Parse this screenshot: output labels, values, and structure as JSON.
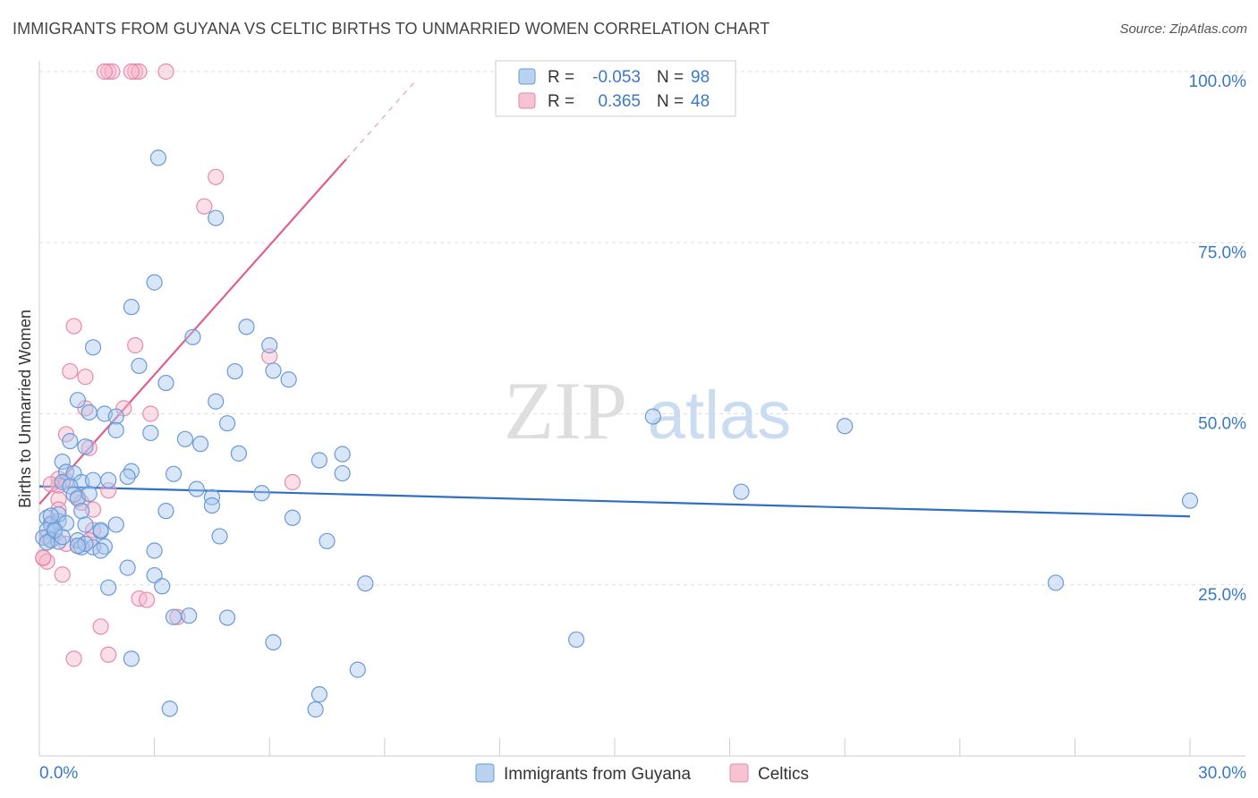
{
  "title": "IMMIGRANTS FROM GUYANA VS CELTIC BIRTHS TO UNMARRIED WOMEN CORRELATION CHART",
  "source": "Source: ZipAtlas.com",
  "watermark": {
    "zip": "ZIP",
    "atlas": "atlas"
  },
  "colors": {
    "blue": "#3a78c8",
    "blue_fill": "#a8c8ee",
    "pink": "#e0608a",
    "pink_fill": "#f6b8cc",
    "grid": "#dddddd",
    "axis_text": "#3a78c8"
  },
  "legend": {
    "rows": [
      {
        "r_label": "R =",
        "r_value": "-0.053",
        "n_label": "N =",
        "n_value": "98"
      },
      {
        "r_label": "R =",
        "r_value": "0.365",
        "n_label": "N =",
        "n_value": "48"
      }
    ]
  },
  "bottom_legend": {
    "series1": "Immigrants from Guyana",
    "series2": "Celtics"
  },
  "chart_data": {
    "type": "scatter",
    "title": "IMMIGRANTS FROM GUYANA VS CELTIC BIRTHS TO UNMARRIED WOMEN CORRELATION CHART",
    "xlabel": "",
    "ylabel": "Births to Unmarried Women",
    "xlim": [
      0,
      30
    ],
    "ylim": [
      0,
      101
    ],
    "x_tick_labels": {
      "min": "0.0%",
      "max": "30.0%"
    },
    "y_ticks": [
      {
        "value": 25,
        "label": "25.0%"
      },
      {
        "value": 50,
        "label": "50.0%"
      },
      {
        "value": 75,
        "label": "75.0%"
      },
      {
        "value": 100,
        "label": "100.0%"
      }
    ],
    "series": [
      {
        "name": "Immigrants from Guyana",
        "r": -0.053,
        "n": 98,
        "trend": {
          "x": [
            0,
            30
          ],
          "y": [
            39.4,
            35.0
          ]
        },
        "points": [
          [
            3.1,
            87.4
          ],
          [
            4.6,
            78.6
          ],
          [
            3.0,
            69.2
          ],
          [
            2.4,
            65.6
          ],
          [
            5.4,
            62.7
          ],
          [
            4.0,
            61.2
          ],
          [
            6.0,
            60.0
          ],
          [
            1.4,
            59.7
          ],
          [
            2.6,
            57.0
          ],
          [
            5.1,
            56.2
          ],
          [
            6.1,
            56.3
          ],
          [
            6.5,
            55.0
          ],
          [
            3.3,
            54.5
          ],
          [
            1.0,
            52.0
          ],
          [
            4.6,
            51.8
          ],
          [
            1.3,
            50.2
          ],
          [
            1.7,
            50.0
          ],
          [
            2.0,
            49.6
          ],
          [
            16.0,
            49.6
          ],
          [
            4.9,
            48.6
          ],
          [
            21.0,
            48.2
          ],
          [
            2.0,
            47.6
          ],
          [
            2.9,
            47.2
          ],
          [
            0.8,
            46.0
          ],
          [
            3.8,
            46.3
          ],
          [
            4.2,
            45.6
          ],
          [
            1.2,
            45.2
          ],
          [
            5.2,
            44.2
          ],
          [
            7.9,
            44.1
          ],
          [
            7.3,
            43.2
          ],
          [
            0.6,
            43.0
          ],
          [
            0.7,
            41.5
          ],
          [
            2.4,
            41.6
          ],
          [
            3.5,
            41.2
          ],
          [
            0.9,
            41.3
          ],
          [
            7.9,
            41.3
          ],
          [
            2.3,
            40.8
          ],
          [
            0.6,
            40.0
          ],
          [
            1.1,
            40.0
          ],
          [
            1.8,
            40.3
          ],
          [
            1.4,
            40.3
          ],
          [
            0.8,
            39.4
          ],
          [
            4.1,
            39.0
          ],
          [
            0.9,
            38.2
          ],
          [
            1.0,
            37.6
          ],
          [
            5.8,
            38.4
          ],
          [
            18.3,
            38.6
          ],
          [
            4.5,
            37.8
          ],
          [
            4.5,
            36.6
          ],
          [
            30.0,
            37.3
          ],
          [
            0.2,
            34.8
          ],
          [
            0.5,
            34.3
          ],
          [
            0.3,
            33.8
          ],
          [
            3.3,
            35.8
          ],
          [
            1.1,
            35.8
          ],
          [
            6.6,
            34.8
          ],
          [
            0.2,
            33.0
          ],
          [
            0.4,
            32.8
          ],
          [
            1.2,
            33.8
          ],
          [
            2.0,
            33.8
          ],
          [
            1.6,
            32.8
          ],
          [
            0.1,
            31.9
          ],
          [
            0.3,
            31.6
          ],
          [
            0.5,
            31.3
          ],
          [
            1.0,
            31.5
          ],
          [
            4.7,
            32.1
          ],
          [
            7.5,
            31.4
          ],
          [
            1.1,
            30.5
          ],
          [
            1.4,
            30.5
          ],
          [
            1.7,
            30.6
          ],
          [
            1.6,
            30.0
          ],
          [
            3.0,
            30.0
          ],
          [
            2.3,
            27.5
          ],
          [
            3.0,
            26.4
          ],
          [
            8.5,
            25.2
          ],
          [
            26.5,
            25.3
          ],
          [
            1.8,
            24.6
          ],
          [
            3.2,
            24.8
          ],
          [
            3.5,
            20.3
          ],
          [
            3.9,
            20.5
          ],
          [
            4.9,
            20.2
          ],
          [
            14.0,
            17.0
          ],
          [
            6.1,
            16.6
          ],
          [
            2.4,
            14.2
          ],
          [
            8.3,
            12.6
          ],
          [
            7.3,
            9.0
          ],
          [
            3.4,
            6.9
          ],
          [
            7.2,
            6.8
          ],
          [
            0.2,
            31.2
          ],
          [
            0.5,
            35.3
          ],
          [
            1.3,
            38.3
          ],
          [
            0.7,
            34.0
          ],
          [
            0.4,
            33.0
          ],
          [
            1.6,
            33.0
          ],
          [
            0.3,
            35.1
          ],
          [
            1.2,
            31.0
          ],
          [
            1.0,
            30.7
          ],
          [
            0.6,
            32.0
          ]
        ]
      },
      {
        "name": "Celtics",
        "r": 0.365,
        "n": 48,
        "trend": {
          "x": [
            0,
            8.0
          ],
          "y": [
            36.8,
            87.2
          ]
        },
        "trend_dashed": {
          "x": [
            8.0,
            9.8
          ],
          "y": [
            87.2,
            98.6
          ]
        },
        "points": [
          [
            1.8,
            100
          ],
          [
            1.9,
            100
          ],
          [
            2.5,
            100
          ],
          [
            2.6,
            100
          ],
          [
            3.3,
            100
          ],
          [
            1.7,
            100
          ],
          [
            2.4,
            100
          ],
          [
            4.6,
            84.6
          ],
          [
            4.3,
            80.3
          ],
          [
            0.9,
            62.8
          ],
          [
            2.5,
            60.0
          ],
          [
            6.0,
            58.4
          ],
          [
            0.8,
            56.2
          ],
          [
            1.2,
            55.4
          ],
          [
            1.2,
            50.8
          ],
          [
            2.2,
            50.8
          ],
          [
            2.9,
            50.0
          ],
          [
            0.7,
            47.0
          ],
          [
            1.3,
            45.0
          ],
          [
            6.6,
            40.0
          ],
          [
            0.5,
            40.5
          ],
          [
            0.7,
            40.2
          ],
          [
            0.5,
            39.5
          ],
          [
            1.8,
            38.8
          ],
          [
            1.0,
            37.8
          ],
          [
            0.5,
            37.5
          ],
          [
            1.1,
            37.0
          ],
          [
            0.5,
            36.0
          ],
          [
            1.4,
            36.0
          ],
          [
            0.3,
            34.0
          ],
          [
            0.4,
            33.0
          ],
          [
            1.4,
            33.0
          ],
          [
            0.2,
            32.0
          ],
          [
            0.3,
            31.5
          ],
          [
            1.3,
            31.5
          ],
          [
            0.7,
            31.0
          ],
          [
            1.0,
            30.7
          ],
          [
            0.1,
            28.9
          ],
          [
            0.2,
            28.4
          ],
          [
            0.6,
            26.5
          ],
          [
            2.6,
            23.0
          ],
          [
            2.8,
            22.8
          ],
          [
            3.6,
            20.3
          ],
          [
            1.6,
            18.9
          ],
          [
            1.8,
            14.8
          ],
          [
            0.9,
            14.2
          ],
          [
            0.1,
            29.0
          ],
          [
            0.3,
            39.7
          ]
        ]
      }
    ],
    "legend_position": "top-center"
  }
}
